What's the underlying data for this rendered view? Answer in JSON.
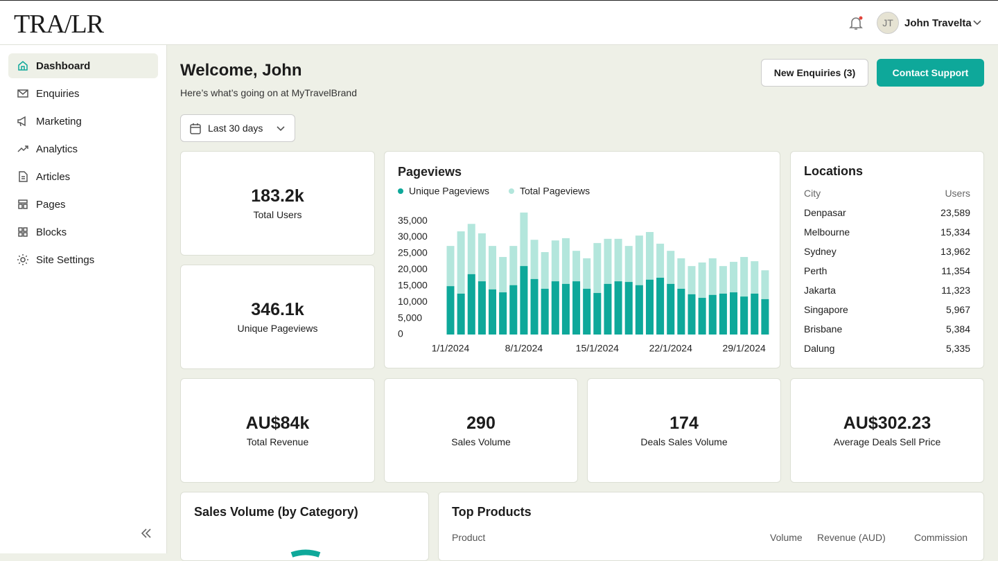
{
  "header": {
    "logo": "TRA/LR",
    "initials": "JT",
    "user_name": "John Travelta"
  },
  "sidebar": {
    "items": [
      "Dashboard",
      "Enquiries",
      "Marketing",
      "Analytics",
      "Articles",
      "Pages",
      "Blocks",
      "Site Settings"
    ]
  },
  "welcome": {
    "title": "Welcome, John",
    "subtitle": "Here’s what’s going on at MyTravelBrand"
  },
  "buttons": {
    "enquiries": "New Enquiries (3)",
    "support": "Contact Support"
  },
  "date_filter": "Last 30 days",
  "stats": [
    {
      "value": "183.2k",
      "label": "Total Users"
    },
    {
      "value": "346.1k",
      "label": "Unique Pageviews"
    },
    {
      "value": "AU$84k",
      "label": "Total Revenue"
    },
    {
      "value": "290",
      "label": "Sales Volume"
    },
    {
      "value": "174",
      "label": "Deals Sales Volume"
    },
    {
      "value": "AU$302.23",
      "label": "Average Deals Sell Price"
    }
  ],
  "chart_data": {
    "type": "bar",
    "title": "Pageviews",
    "categories": [
      "1/1/2024",
      null,
      null,
      null,
      null,
      null,
      null,
      "8/1/2024",
      null,
      null,
      null,
      null,
      null,
      null,
      "15/1/2024",
      null,
      null,
      null,
      null,
      null,
      null,
      "22/1/2024",
      null,
      null,
      null,
      null,
      null,
      null,
      "29/1/2024",
      null,
      null
    ],
    "series": [
      {
        "name": "Unique Pageviews",
        "color": "#0ea89a",
        "values": [
          14900,
          12600,
          18600,
          16400,
          13900,
          13000,
          15200,
          21100,
          17100,
          14100,
          16400,
          15600,
          16400,
          14100,
          12800,
          15600,
          16400,
          16200,
          15200,
          16900,
          17500,
          15600,
          14100,
          12400,
          11300,
          12200,
          12600,
          13000,
          11700,
          12600,
          10900
        ]
      },
      {
        "name": "Total Pageviews",
        "color": "#b3e6dc",
        "values": [
          27300,
          31800,
          34100,
          31200,
          27300,
          23900,
          27300,
          37600,
          29200,
          25400,
          29000,
          29700,
          25800,
          23500,
          28200,
          29500,
          29500,
          27300,
          30500,
          31600,
          28000,
          25800,
          23500,
          21100,
          22200,
          23500,
          21100,
          22400,
          23900,
          22600,
          19800
        ]
      }
    ],
    "ylim": [
      0,
      38000
    ],
    "yticks": [
      0,
      {
        "value": 5000,
        "label": "5,000"
      },
      {
        "value": 10000,
        "label": "10,000"
      },
      {
        "value": 15000,
        "label": "15,000"
      },
      {
        "value": 20000,
        "label": "20,000"
      },
      {
        "value": 25000,
        "label": "25,000"
      },
      {
        "value": 30000,
        "label": "30,000"
      },
      {
        "value": 35000,
        "label": "35,000"
      }
    ],
    "grid": false
  },
  "locations": {
    "title": "Locations",
    "headers": [
      "City",
      "Users"
    ],
    "rows": [
      [
        "Denpasar",
        "23,589"
      ],
      [
        "Melbourne",
        "15,334"
      ],
      [
        "Sydney",
        "13,962"
      ],
      [
        "Perth",
        "11,354"
      ],
      [
        "Jakarta",
        "11,323"
      ],
      [
        "Singapore",
        "5,967"
      ],
      [
        "Brisbane",
        "5,384"
      ],
      [
        "Dalung",
        "5,335"
      ]
    ]
  },
  "sales_category": {
    "title": "Sales Volume (by Category)"
  },
  "top_products": {
    "title": "Top Products",
    "headers": [
      "Product",
      "Volume",
      "Revenue (AUD)",
      "Commission"
    ]
  }
}
